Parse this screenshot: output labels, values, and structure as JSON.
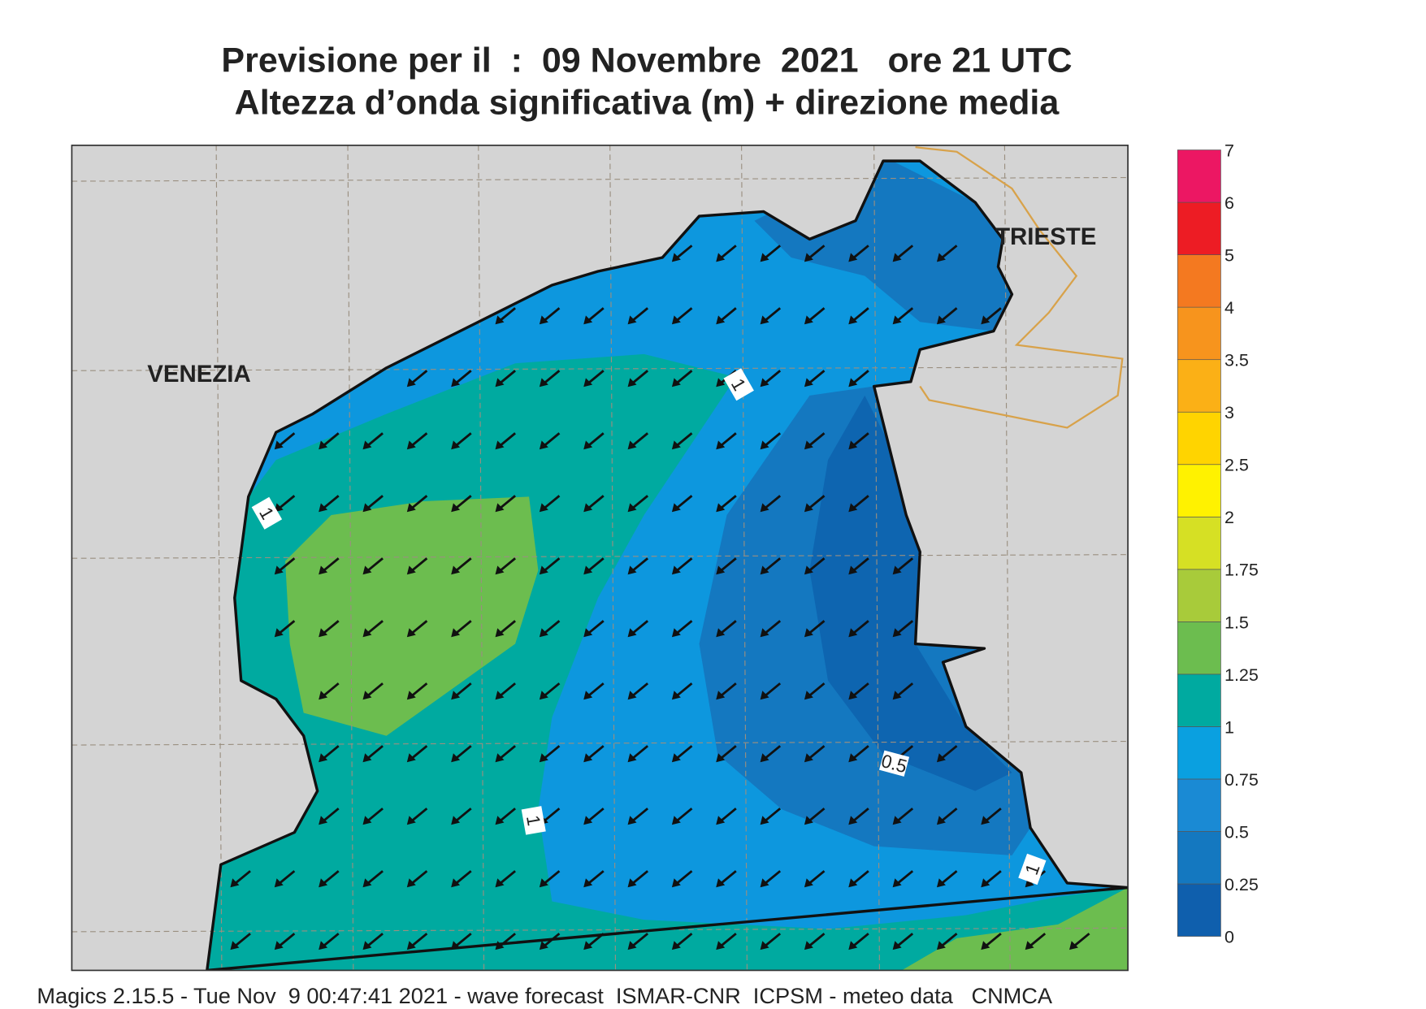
{
  "header": {
    "title": "Previsione per il  :  09 Novembre  2021   ore 21 UTC",
    "subtitle": "Altezza d’onda significativa (m) + direzione media"
  },
  "map": {
    "places": [
      "VENEZIA",
      "TRIESTE"
    ],
    "contour_labels": [
      "1",
      "1",
      "1",
      "1",
      "0.5"
    ]
  },
  "colorbar": {
    "labels": [
      "0",
      "0.25",
      "0.5",
      "0.75",
      "1",
      "1.25",
      "1.5",
      "1.75",
      "2",
      "2.5",
      "3",
      "3.5",
      "4",
      "5",
      "6",
      "7"
    ],
    "colors": [
      "#0f5fad",
      "#1478c0",
      "#1a8ad4",
      "#0aa0e0",
      "#00aaa0",
      "#6cbd4f",
      "#a8cb3a",
      "#d6e024",
      "#fff200",
      "#ffd400",
      "#fbb016",
      "#f7941d",
      "#f47920",
      "#ed1c24",
      "#ec1763"
    ]
  },
  "footer": "Magics 2.15.5 - Tue Nov  9 00:47:41 2021 - wave forecast  ISMAR-CNR  ICPSM - meteo data   CNMCA"
}
